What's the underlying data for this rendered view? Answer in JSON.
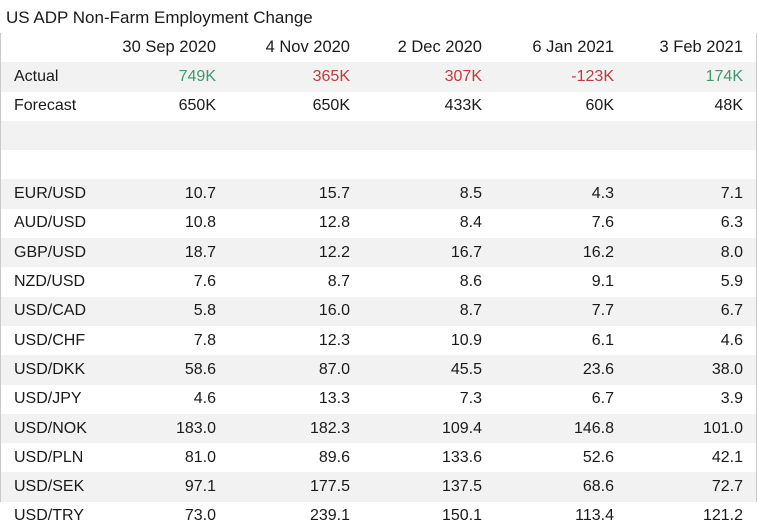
{
  "title": "US ADP Non-Farm Employment Change",
  "columns": [
    "",
    "30 Sep 2020",
    "4 Nov 2020",
    "2 Dec 2020",
    "6 Jan 2021",
    "3 Feb 2021"
  ],
  "colors": {
    "positive": "#3c9a6b",
    "negative": "#c23a3a"
  },
  "actual": {
    "label": "Actual",
    "values": [
      "749K",
      "365K",
      "307K",
      "-123K",
      "174K"
    ],
    "tones": [
      "green",
      "red",
      "red",
      "red",
      "green"
    ]
  },
  "forecast": {
    "label": "Forecast",
    "values": [
      "650K",
      "650K",
      "433K",
      "60K",
      "48K"
    ]
  },
  "pairs": [
    {
      "label": "EUR/USD",
      "values": [
        "10.7",
        "15.7",
        "8.5",
        "4.3",
        "7.1"
      ]
    },
    {
      "label": "AUD/USD",
      "values": [
        "10.8",
        "12.8",
        "8.4",
        "7.6",
        "6.3"
      ]
    },
    {
      "label": "GBP/USD",
      "values": [
        "18.7",
        "12.2",
        "16.7",
        "16.2",
        "8.0"
      ]
    },
    {
      "label": "NZD/USD",
      "values": [
        "7.6",
        "8.7",
        "8.6",
        "9.1",
        "5.9"
      ]
    },
    {
      "label": "USD/CAD",
      "values": [
        "5.8",
        "16.0",
        "8.7",
        "7.7",
        "6.7"
      ]
    },
    {
      "label": "USD/CHF",
      "values": [
        "7.8",
        "12.3",
        "10.9",
        "6.1",
        "4.6"
      ]
    },
    {
      "label": "USD/DKK",
      "values": [
        "58.6",
        "87.0",
        "45.5",
        "23.6",
        "38.0"
      ]
    },
    {
      "label": "USD/JPY",
      "values": [
        "4.6",
        "13.3",
        "7.3",
        "6.7",
        "3.9"
      ]
    },
    {
      "label": "USD/NOK",
      "values": [
        "183.0",
        "182.3",
        "109.4",
        "146.8",
        "101.0"
      ]
    },
    {
      "label": "USD/PLN",
      "values": [
        "81.0",
        "89.6",
        "133.6",
        "52.6",
        "42.1"
      ]
    },
    {
      "label": "USD/SEK",
      "values": [
        "97.1",
        "177.5",
        "137.5",
        "68.6",
        "72.7"
      ]
    },
    {
      "label": "USD/TRY",
      "values": [
        "73.0",
        "239.1",
        "150.1",
        "113.4",
        "121.2"
      ]
    }
  ]
}
